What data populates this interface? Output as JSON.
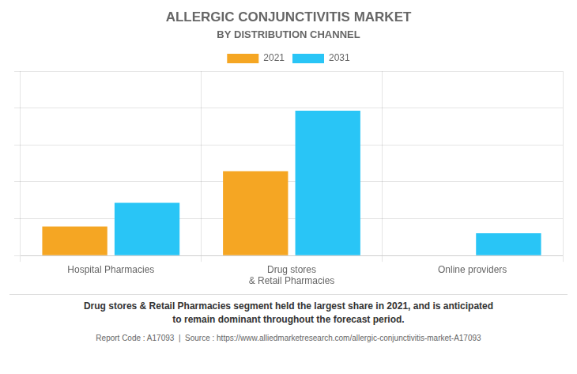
{
  "chart_data": {
    "type": "bar",
    "title": "ALLERGIC CONJUNCTIVITIS MARKET",
    "subtitle": "BY DISTRIBUTION CHANNEL",
    "categories": [
      "Hospital Pharmacies",
      "Drug stores\n& Retail Pharmacies",
      "Online providers"
    ],
    "series": [
      {
        "name": "2021",
        "color": "#F5A623",
        "values": [
          1.1,
          3.2,
          0.0
        ]
      },
      {
        "name": "2031",
        "color": "#29C5F6",
        "values": [
          2.0,
          5.5,
          0.85
        ]
      }
    ],
    "ylim": [
      0,
      7.0
    ],
    "yticks": [
      0,
      1.4,
      2.8,
      4.2,
      5.6,
      7.0
    ],
    "grid": true,
    "legend": "top",
    "tick_labels": "x",
    "annotation": "Drug stores & Retail Pharmacies segment held the largest share in 2021, and is anticipated\nto remain dominant throughout the forecast period.",
    "footer": "Report Code : A17093  |  Source : https://www.alliedmarketresearch.com/allergic-conjunctivitis-market-A17093"
  }
}
